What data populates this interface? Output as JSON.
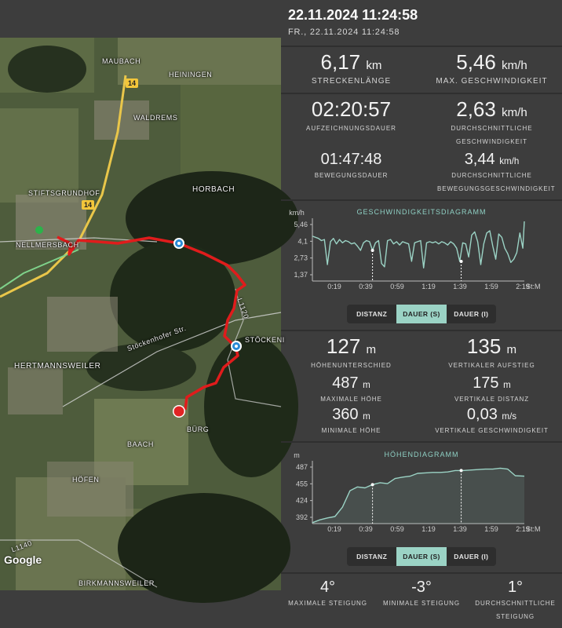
{
  "header": {
    "title": "22.11.2024 11:24:58",
    "subtitle": "FR., 22.11.2024 11:24:58"
  },
  "stats": {
    "distance": {
      "value": "6,17",
      "unit": "km",
      "label": "STRECKENLÄNGE"
    },
    "max_speed": {
      "value": "5,46",
      "unit": "km/h",
      "label": "MAX. GESCHWINDIGKEIT"
    },
    "duration": {
      "value": "02:20:57",
      "label": "AUFZEICHNUNGSDAUER"
    },
    "avg_speed": {
      "value": "2,63",
      "unit": "km/h",
      "label": "DURCHSCHNITTLICHE GESCHWINDIGKEIT"
    },
    "moving_time": {
      "value": "01:47:48",
      "label": "BEWEGUNGSDAUER"
    },
    "avg_moving_speed": {
      "value": "3,44",
      "unit": "km/h",
      "label": "DURCHSCHNITTLICHE BEWEGUNGSGESCHWINDIGKEIT"
    }
  },
  "elevation_stats": {
    "height_diff": {
      "value": "127",
      "unit": "m",
      "label": "HÖHENUNTERSCHIED"
    },
    "vertical_ascent": {
      "value": "135",
      "unit": "m",
      "label": "VERTIKALER AUFSTIEG"
    },
    "max_height": {
      "value": "487",
      "unit": "m",
      "label": "MAXIMALE HÖHE"
    },
    "vertical_distance": {
      "value": "175",
      "unit": "m",
      "label": "VERTIKALE DISTANZ"
    },
    "min_height": {
      "value": "360",
      "unit": "m",
      "label": "MINIMALE HÖHE"
    },
    "vertical_speed": {
      "value": "0,03",
      "unit": "m/s",
      "label": "VERTIKALE GESCHWINDIGKEIT"
    }
  },
  "slope_stats": {
    "max_slope": {
      "value": "4°",
      "label": "MAXIMALE STEIGUNG"
    },
    "min_slope": {
      "value": "-3°",
      "label": "MINIMALE STEIGUNG"
    },
    "avg_slope": {
      "value": "1°",
      "label": "DURCHSCHNITTLICHE STEIGUNG"
    }
  },
  "toggle_options": [
    "DISTANZ",
    "DAUER (S)",
    "DAUER (I)"
  ],
  "toggle_active_index": 1,
  "map": {
    "labels": [
      "MAUBACH",
      "HEININGEN",
      "WALDREMS",
      "STIFTSGRUNDHOF",
      "HORBACH",
      "NELLMERSBACH",
      "L1120",
      "STÖCKENI",
      "Stöckenhofer Str.",
      "HERTMANNSWEILER",
      "BÜRG",
      "BAACH",
      "HÖFEN",
      "L1140",
      "BIRKMANNSWEILER"
    ],
    "road_shields": [
      "14",
      "14"
    ],
    "brand": "Google",
    "route_color": "#e01c1c"
  },
  "chart_data": [
    {
      "type": "line",
      "title": "GESCHWINDIGKEITSDIAGRAMM",
      "ylabel": "km/h",
      "xlabel": "St:M",
      "yticks": [
        "5,46",
        "4,1",
        "2,73",
        "1,37"
      ],
      "xticks": [
        "0:19",
        "0:39",
        "0:59",
        "1:19",
        "1:39",
        "1:59",
        "2:19"
      ],
      "ylim": [
        0,
        5.46
      ],
      "xlim": [
        0,
        141
      ],
      "x": [
        0,
        4,
        6,
        8,
        10,
        12,
        14,
        16,
        18,
        20,
        22,
        24,
        26,
        28,
        30,
        32,
        34,
        36,
        38,
        40,
        42,
        44,
        46,
        48,
        50,
        52,
        54,
        56,
        58,
        60,
        62,
        64,
        66,
        68,
        70,
        72,
        74,
        76,
        78,
        80,
        82,
        84,
        86,
        88,
        90,
        92,
        94,
        96,
        98,
        100,
        102,
        104,
        106,
        108,
        110,
        112,
        114,
        116,
        118,
        120,
        122,
        124,
        126,
        128,
        130,
        132,
        134,
        136,
        138,
        140,
        141
      ],
      "values": [
        4.1,
        3.9,
        3.7,
        3.8,
        1.5,
        3.6,
        3.9,
        3.4,
        3.8,
        3.5,
        3.7,
        3.6,
        3.4,
        3.5,
        3.2,
        2.8,
        3.5,
        3.7,
        3.6,
        2.8,
        3.5,
        3.7,
        1.6,
        1.3,
        3.7,
        3.8,
        3.4,
        3.6,
        3.3,
        3.6,
        3.5,
        3.4,
        1.8,
        3.5,
        3.6,
        3.7,
        1.2,
        3.5,
        3.6,
        3.5,
        3.6,
        3.4,
        3.6,
        3.5,
        3.3,
        3.6,
        3.4,
        3.0,
        1.8,
        3.5,
        3.4,
        2.2,
        4.2,
        4.5,
        3.6,
        1.5,
        3.4,
        4.4,
        4.6,
        3.2,
        2.0,
        4.3,
        4.0,
        3.0,
        2.5,
        1.7,
        2.0,
        2.6,
        4.4,
        3.0,
        5.46
      ],
      "markers_x": [
        40,
        99
      ]
    },
    {
      "type": "area",
      "title": "HÖHENDIAGRAMM",
      "ylabel": "m",
      "xlabel": "St:M",
      "yticks": [
        "487",
        "455",
        "424",
        "392"
      ],
      "xticks": [
        "0:19",
        "0:39",
        "0:59",
        "1:19",
        "1:39",
        "1:59",
        "2:19"
      ],
      "ylim": [
        360,
        487
      ],
      "xlim": [
        0,
        141
      ],
      "x": [
        0,
        5,
        10,
        15,
        20,
        25,
        30,
        35,
        40,
        45,
        50,
        55,
        60,
        65,
        70,
        75,
        80,
        85,
        90,
        95,
        100,
        105,
        110,
        115,
        120,
        125,
        130,
        135,
        141
      ],
      "values": [
        362,
        368,
        372,
        375,
        395,
        430,
        438,
        436,
        443,
        447,
        445,
        456,
        459,
        461,
        467,
        468,
        469,
        469,
        470,
        473,
        473,
        474,
        475,
        476,
        476,
        478,
        476,
        462,
        461
      ],
      "markers_x": [
        40,
        99
      ]
    }
  ]
}
